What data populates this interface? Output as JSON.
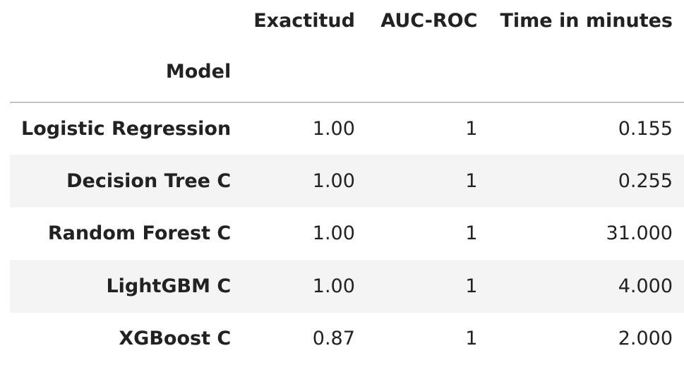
{
  "table": {
    "columns": [
      "Exactitud",
      "AUC-ROC",
      "Time in minutes"
    ],
    "index_name": "Model",
    "rows": [
      {
        "model": "Logistic Regression",
        "exactitud": "1.00",
        "auc_roc": "1",
        "time": "0.155"
      },
      {
        "model": "Decision Tree C",
        "exactitud": "1.00",
        "auc_roc": "1",
        "time": "0.255"
      },
      {
        "model": "Random Forest C",
        "exactitud": "1.00",
        "auc_roc": "1",
        "time": "31.000"
      },
      {
        "model": "LightGBM C",
        "exactitud": "1.00",
        "auc_roc": "1",
        "time": "4.000"
      },
      {
        "model": "XGBoost C",
        "exactitud": "0.87",
        "auc_roc": "1",
        "time": "2.000"
      }
    ]
  },
  "colors": {
    "stripe": "#f4f4f4",
    "header_rule": "#c4c4c4",
    "text": "#222222"
  }
}
